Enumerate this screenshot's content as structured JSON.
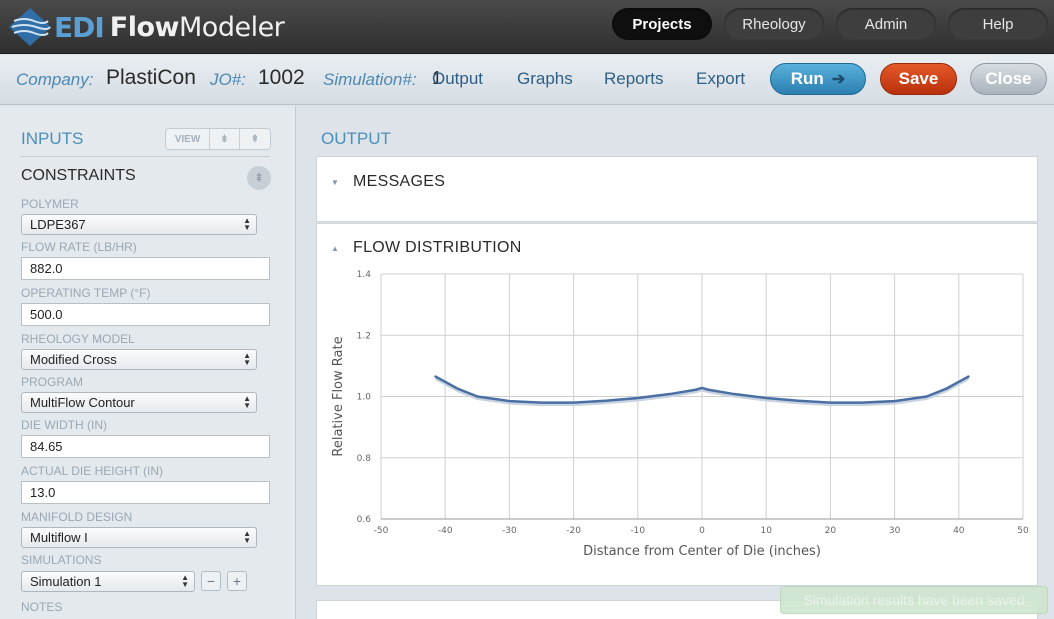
{
  "app": {
    "logo_edi": "EDI",
    "logo_flow": "Flow",
    "logo_modeler": "Modeler"
  },
  "nav": [
    {
      "label": "Projects",
      "active": true
    },
    {
      "label": "Rheology",
      "active": false
    },
    {
      "label": "Admin",
      "active": false
    },
    {
      "label": "Help",
      "active": false
    }
  ],
  "subbar": {
    "company_label": "Company:",
    "company_value": "PlastiCon",
    "jo_label": "JO#:",
    "jo_value": "1002",
    "sim_label": "Simulation#:",
    "sim_value": "1",
    "links": [
      "Output",
      "Graphs",
      "Reports",
      "Export"
    ],
    "run": "Run",
    "save": "Save",
    "close": "Close"
  },
  "inputs": {
    "title": "INPUTS",
    "view_label": "VIEW",
    "constraints_title": "CONSTRAINTS",
    "polymer_label": "POLYMER",
    "polymer_value": "LDPE367",
    "flow_rate_label": "FLOW RATE (LB/HR)",
    "flow_rate_value": "882.0",
    "operating_temp_label": "OPERATING TEMP (°F)",
    "operating_temp_value": "500.0",
    "rheology_label": "RHEOLOGY MODEL",
    "rheology_value": "Modified Cross",
    "program_label": "PROGRAM",
    "program_value": "MultiFlow Contour",
    "die_width_label": "DIE WIDTH (IN)",
    "die_width_value": "84.65",
    "die_height_label": "ACTUAL DIE HEIGHT (IN)",
    "die_height_value": "13.0",
    "manifold_label": "MANIFOLD DESIGN",
    "manifold_value": "Multiflow I",
    "simulations_label": "SIMULATIONS",
    "simulations_value": "Simulation 1",
    "notes_label": "NOTES"
  },
  "output": {
    "title": "OUTPUT",
    "messages_title": "MESSAGES",
    "flow_title": "FLOW DISTRIBUTION"
  },
  "toast": "Simulation results have been saved",
  "chart_data": {
    "type": "line",
    "xlabel": "Distance from Center of Die (inches)",
    "ylabel": "Relative Flow Rate",
    "xlim": [
      -50,
      50
    ],
    "ylim": [
      0.6,
      1.4
    ],
    "xticks": [
      -50,
      -40,
      -30,
      -20,
      -10,
      0,
      10,
      20,
      30,
      40,
      50
    ],
    "yticks": [
      0.6,
      0.8,
      1.0,
      1.2,
      1.4
    ],
    "grid": true,
    "series": [
      {
        "color": "#4a6fa5",
        "x": [
          -41.5,
          -38,
          -35,
          -30,
          -25,
          -20,
          -15,
          -10,
          -5,
          -1,
          0,
          1,
          5,
          10,
          15,
          20,
          25,
          30,
          35,
          38,
          41.5
        ],
        "y": [
          1.065,
          1.025,
          1.0,
          0.985,
          0.98,
          0.98,
          0.986,
          0.995,
          1.008,
          1.022,
          1.028,
          1.022,
          1.008,
          0.995,
          0.986,
          0.98,
          0.98,
          0.985,
          1.0,
          1.025,
          1.065
        ]
      }
    ]
  }
}
